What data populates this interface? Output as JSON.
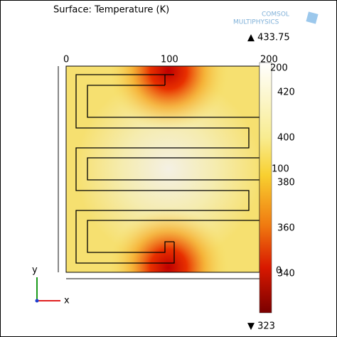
{
  "title": "Surface: Temperature (K)",
  "logo": [
    "COMSOL",
    "MULTIPHYSICS"
  ],
  "max_label": "▲ 433.75",
  "min_label": "▼ 323",
  "x_ticks": [
    "0",
    "100",
    "200"
  ],
  "y_ticks": [
    "200",
    "100",
    "0"
  ],
  "colorbar_ticks": [
    "420",
    "400",
    "380",
    "360",
    "340"
  ],
  "triad": {
    "y": "y",
    "x": "x"
  }
}
